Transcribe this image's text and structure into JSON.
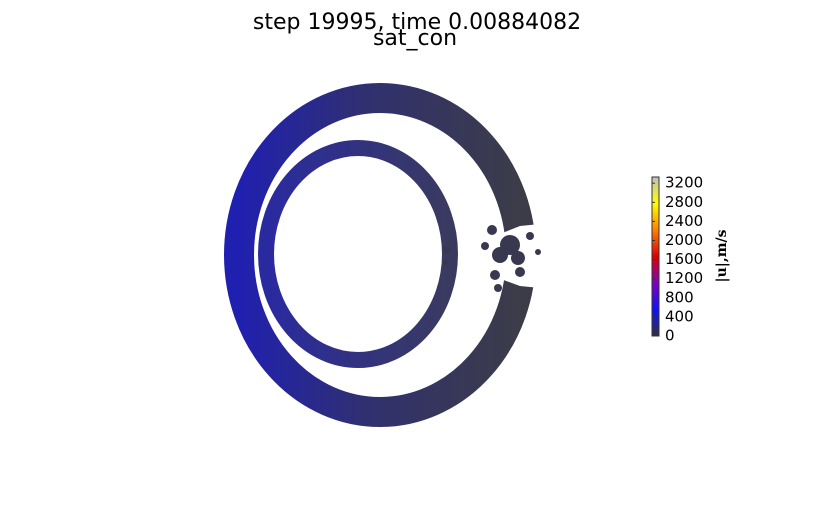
{
  "title": "step 19995, time 0.00884082",
  "subtitle": "sat_con",
  "colorbar": {
    "label": "|u|,m/s",
    "lim": [
      0,
      3330
    ],
    "ticks": [
      0,
      400,
      800,
      1200,
      1600,
      2000,
      2400,
      2800,
      3200
    ],
    "colors": [
      "#303040",
      "#1010ff",
      "#8000c0",
      "#e00000",
      "#ff8000",
      "#ffff00",
      "#c0c0c0"
    ]
  }
}
